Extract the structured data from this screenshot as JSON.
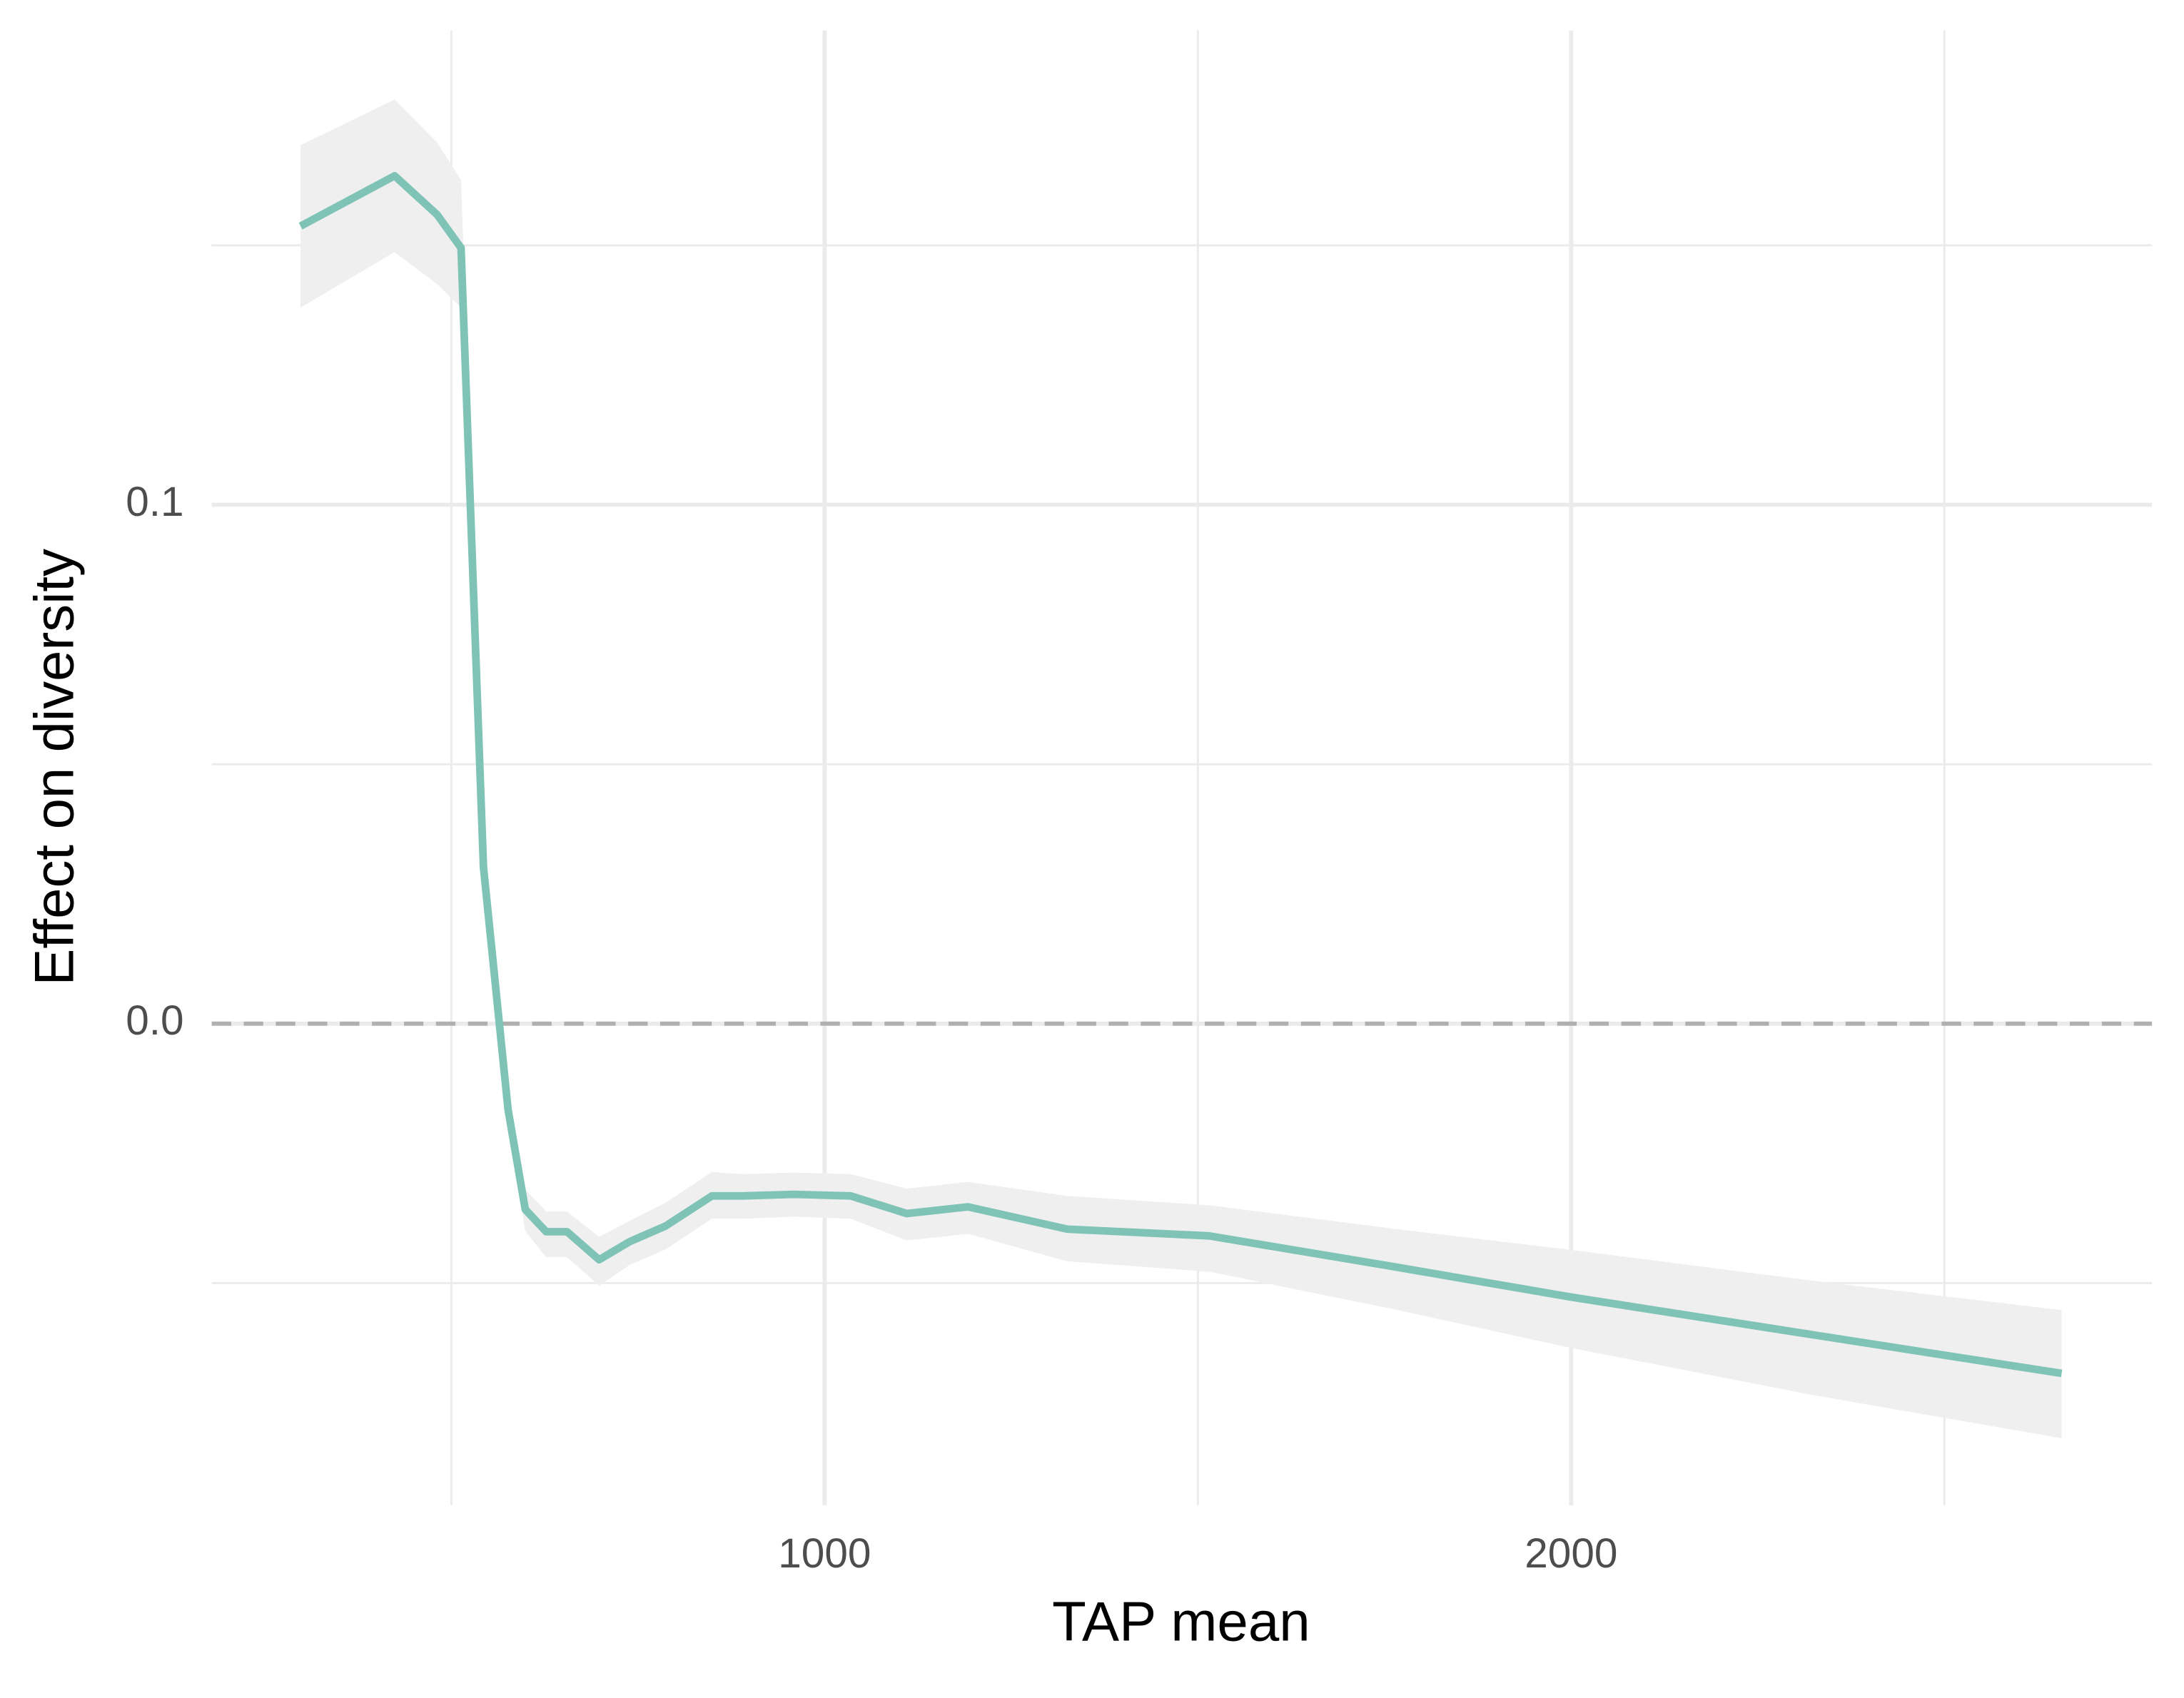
{
  "chart_data": {
    "type": "line",
    "x_label": "TAP mean",
    "y_label": "Effect on diversity",
    "xlim": [
      179,
      2778
    ],
    "ylim": [
      -0.0928,
      0.1914
    ],
    "xticks": [
      1000,
      2000
    ],
    "x_minor_grid": [
      500,
      1500,
      2500
    ],
    "yticks": [
      {
        "value": 0,
        "label": "0.0"
      },
      0.1
    ],
    "y_minor_grid": [
      -0.05,
      0.05,
      0.15
    ],
    "grid": true,
    "hline": 0,
    "series": [
      {
        "color": "#7fc3b6",
        "band_color": "#efefef",
        "x": [
          298,
          424,
          481,
          513,
          543,
          576,
          599,
          627,
          655,
          698,
          739,
          787,
          849,
          890,
          959,
          1035,
          1110,
          1192,
          1325,
          1515,
          1761,
          2000,
          2321,
          2657
        ],
        "values": [
          0.1537,
          0.1634,
          0.1559,
          0.1495,
          0.0302,
          -0.0166,
          -0.0358,
          -0.0401,
          -0.0401,
          -0.0455,
          -0.042,
          -0.039,
          -0.0332,
          -0.0332,
          -0.0329,
          -0.0332,
          -0.0366,
          -0.0353,
          -0.0396,
          -0.0409,
          -0.0468,
          -0.0527,
          -0.0599,
          -0.0674
        ],
        "upper": [
          0.1693,
          0.1781,
          0.1698,
          0.1626,
          0.033,
          -0.014,
          -0.032,
          -0.0362,
          -0.0362,
          -0.0411,
          -0.038,
          -0.0345,
          -0.0286,
          -0.029,
          -0.0287,
          -0.029,
          -0.0318,
          -0.0305,
          -0.0332,
          -0.035,
          -0.0395,
          -0.0436,
          -0.0495,
          -0.0552
        ],
        "lower": [
          0.138,
          0.1487,
          0.1425,
          0.138,
          0.027,
          -0.019,
          -0.04,
          -0.045,
          -0.045,
          -0.0505,
          -0.0465,
          -0.0435,
          -0.0376,
          -0.0376,
          -0.0372,
          -0.0376,
          -0.0418,
          -0.0405,
          -0.0458,
          -0.0478,
          -0.055,
          -0.0625,
          -0.0715,
          -0.0799
        ]
      }
    ]
  }
}
